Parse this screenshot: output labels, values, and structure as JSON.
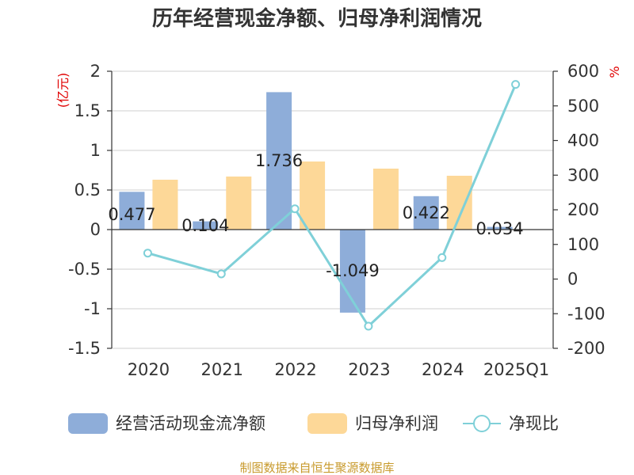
{
  "chart_data": {
    "type": "bar",
    "title": "历年经营现金净额、归母净利润情况",
    "categories": [
      "2020",
      "2021",
      "2022",
      "2023",
      "2024",
      "2025Q1"
    ],
    "left_axis": {
      "unit": "(亿元)",
      "ylim": [
        -1.5,
        2
      ],
      "ticks": [
        "2",
        "1.5",
        "1",
        "0.5",
        "0",
        "-0.5",
        "-1",
        "-1.5"
      ],
      "tick_values": [
        2,
        1.5,
        1,
        0.5,
        0,
        -0.5,
        -1,
        -1.5
      ]
    },
    "right_axis": {
      "unit": "%",
      "ylim": [
        -200,
        600
      ],
      "ticks": [
        "600",
        "500",
        "400",
        "300",
        "200",
        "100",
        "0",
        "-100",
        "-200"
      ],
      "tick_values": [
        600,
        500,
        400,
        300,
        200,
        100,
        0,
        -100,
        -200
      ]
    },
    "series": [
      {
        "name": "经营活动现金流净额",
        "type": "bar",
        "axis": "left",
        "color": "#8eadd9",
        "values": [
          0.477,
          0.104,
          1.736,
          -1.049,
          0.422,
          0.034
        ],
        "labels": [
          "0.477",
          "0.104",
          "1.736",
          "-1.049",
          "0.422",
          "0.034"
        ]
      },
      {
        "name": "归母净利润",
        "type": "bar",
        "axis": "left",
        "color": "#fdd898",
        "values": [
          0.63,
          0.67,
          0.86,
          0.77,
          0.68,
          null
        ]
      },
      {
        "name": "净现比",
        "type": "line",
        "axis": "right",
        "color": "#7fd0d8",
        "values": [
          75,
          15,
          203,
          -136,
          62,
          562
        ]
      }
    ],
    "grid": true,
    "legend_position": "bottom"
  },
  "source_text": "制图数据来自恒生聚源数据库"
}
